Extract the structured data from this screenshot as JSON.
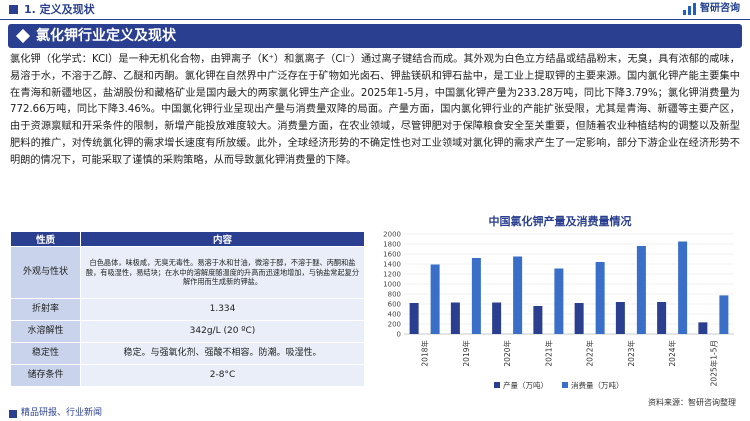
{
  "header": {
    "section": "1. 定义及现状",
    "logo": "智研咨询"
  },
  "banner": {
    "title": "氯化钾行业定义及现状"
  },
  "paragraph": "氯化钾（化学式：KCl）是一种无机化合物，由钾离子（K⁺）和氯离子（Cl⁻）通过离子键结合而成。其外观为白色立方结晶或结晶粉末，无臭，具有浓郁的咸味，易溶于水，不溶于乙醇、乙醚和丙酮。氯化钾在自然界中广泛存在于矿物如光卤石、钾盐镁矾和钾石盐中，是工业上提取钾的主要来源。国内氯化钾产能主要集中在青海和新疆地区，盐湖股份和藏格矿业是国内最大的两家氯化钾生产企业。2025年1-5月，中国氯化钾产量为233.28万吨，同比下降3.79%；氯化钾消费量为772.66万吨，同比下降3.46%。中国氯化钾行业呈现出产量与消费量双降的局面。产量方面，国内氯化钾行业的产能扩张受限，尤其是青海、新疆等主要产区，由于资源禀赋和开采条件的限制，新增产能投放难度较大。消费量方面，在农业领域，尽管钾肥对于保障粮食安全至关重要，但随着农业种植结构的调整以及新型肥料的推广，对传统氯化钾的需求增长速度有所放缓。此外，全球经济形势的不确定性也对工业领域对氯化钾的需求产生了一定影响，部分下游企业在经济形势不明朗的情况下，可能采取了谨慎的采购策略，从而导致氯化钾消费量的下降。",
  "table": {
    "headers": [
      "性质",
      "内容"
    ],
    "rows": [
      {
        "key": "外观与性状",
        "value": "白色晶体，味极咸，无臭无毒性。易溶于水和甘油，微溶于醇，不溶于醚、丙酮和盐酸，有吸湿性，易结块；在水中的溶解度随温度的升高而迅速地增加，与钠盐常起复分解作用而生成新的钾盐。"
      },
      {
        "key": "折射率",
        "value": "1.334"
      },
      {
        "key": "水溶解性",
        "value": "342g/L (20 ºC)"
      },
      {
        "key": "稳定性",
        "value": "稳定。与强氧化剂、强酸不相容。防潮。吸湿性。"
      },
      {
        "key": "储存条件",
        "value": "2-8°C"
      }
    ]
  },
  "chart_data": {
    "type": "bar",
    "title": "中国氯化钾产量及消费量情况",
    "categories": [
      "2018年",
      "2019年",
      "2020年",
      "2021年",
      "2022年",
      "2023年",
      "2024年",
      "2025年1-5月"
    ],
    "series": [
      {
        "name": "产量（万吨）",
        "color": "#2a3f8f",
        "values": [
          620,
          630,
          630,
          560,
          620,
          640,
          640,
          233.28
        ]
      },
      {
        "name": "消费量（万吨）",
        "color": "#3a6fc9",
        "values": [
          1390,
          1520,
          1550,
          1310,
          1440,
          1760,
          1850,
          772.66
        ]
      }
    ],
    "yticks": [
      "0",
      "200",
      "400",
      "600",
      "800",
      "1000",
      "1200",
      "1400",
      "1600",
      "1800",
      "2000"
    ],
    "ylim": [
      0,
      2000
    ],
    "legend": "bottom"
  },
  "source": "资料来源：智研咨询整理",
  "footer": "精品研报、行业新闻"
}
